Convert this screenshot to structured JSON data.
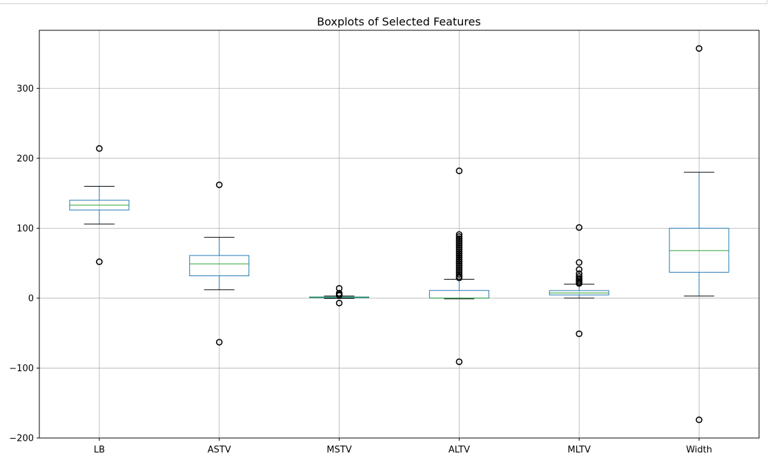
{
  "chart_data": {
    "type": "boxplot",
    "title": "Boxplots of Selected Features",
    "xlabel": "",
    "ylabel": "",
    "categories": [
      "LB",
      "ASTV",
      "MSTV",
      "ALTV",
      "MLTV",
      "Width"
    ],
    "ylim": [
      -200,
      383
    ],
    "yticks": [
      -200,
      -100,
      0,
      100,
      200,
      300
    ],
    "ytick_labels": [
      "−200",
      "−100",
      "0",
      "100",
      "200",
      "300"
    ],
    "grid": true,
    "colors": {
      "box": "#1f77b4",
      "median": "#2ca02c",
      "whisker_cap": "#000000",
      "grid": "#b0b0b0",
      "axes": "#000000"
    },
    "boxes": [
      {
        "name": "LB",
        "whisker_low": 106,
        "q1": 126,
        "median": 133,
        "q3": 140,
        "whisker_high": 160,
        "outliers": [
          214,
          52
        ]
      },
      {
        "name": "ASTV",
        "whisker_low": 12,
        "q1": 32,
        "median": 49,
        "q3": 61,
        "whisker_high": 87,
        "outliers": [
          162,
          -63
        ]
      },
      {
        "name": "MSTV",
        "whisker_low": -0.5,
        "q1": 0.7,
        "median": 1.2,
        "q3": 1.7,
        "whisker_high": 3,
        "outliers": [
          14,
          7,
          5,
          4,
          -7
        ]
      },
      {
        "name": "ALTV",
        "whisker_low": -1,
        "q1": 0,
        "median": 0,
        "q3": 11,
        "whisker_high": 27,
        "outliers": [
          182,
          91,
          88,
          85,
          82,
          79,
          76,
          73,
          70,
          67,
          64,
          61,
          58,
          55,
          52,
          49,
          46,
          43,
          40,
          37,
          34,
          31,
          29,
          -91
        ]
      },
      {
        "name": "MLTV",
        "whisker_low": 0,
        "q1": 4.6,
        "median": 7.4,
        "q3": 10.8,
        "whisker_high": 20,
        "outliers": [
          101,
          51,
          41,
          35,
          31,
          28,
          26,
          24,
          22,
          21,
          -51
        ]
      },
      {
        "name": "Width",
        "whisker_low": 3,
        "q1": 37,
        "median": 68,
        "q3": 100,
        "whisker_high": 180,
        "outliers": [
          357,
          -174
        ]
      }
    ]
  }
}
